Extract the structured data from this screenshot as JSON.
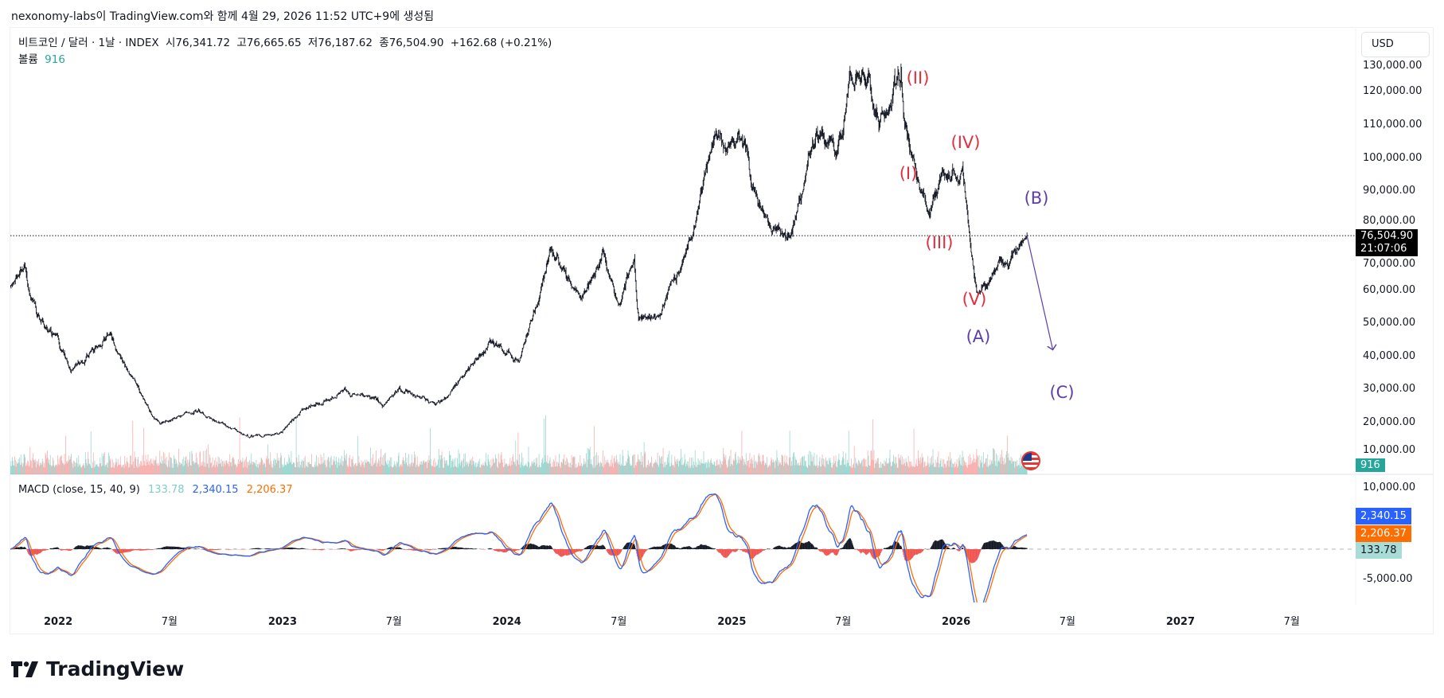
{
  "credit": "nexonomy-labs이 TradingView.com와 함께 4월 29, 2026 11:52 UTC+9에 생성됨",
  "legend": {
    "symbol": "비트코인 / 달러 · 1날 · INDEX",
    "open": "시76,341.72",
    "high": "고76,665.65",
    "low": "저76,187.62",
    "close": "종76,504.90",
    "change": "+162.68 (+0.21%)",
    "volume_label": "볼륨",
    "volume_value": "916"
  },
  "currency": "USD",
  "price_tag": {
    "price": "76,504.90",
    "countdown": "21:07:06"
  },
  "volume_tag": "916",
  "macd": {
    "title": "MACD (close, 15, 40, 9)",
    "histogram": "133.78",
    "macd": "2,340.15",
    "signal": "2,206.37",
    "colors": {
      "histogram": "#a8dcd6",
      "macd": "#2962ff",
      "signal": "#ff6d00"
    }
  },
  "waves": {
    "I": "(I)",
    "II": "(II)",
    "III": "(III)",
    "IV": "(IV)",
    "V": "(V)",
    "A": "(A)",
    "B": "(B)",
    "C": "(C)",
    "colors": {
      "impulse": "#e0303f",
      "corrective": "#5e3fa8"
    }
  },
  "logo": "TradingView",
  "chart_data": {
    "type": "line",
    "title": "비트코인 / 달러 · 1날 · INDEX",
    "price_ticks": [
      "130,000.00",
      "120,000.00",
      "110,000.00",
      "100,000.00",
      "90,000.00",
      "80,000.00",
      "70,000.00",
      "60,000.00",
      "50,000.00",
      "40,000.00",
      "30,000.00",
      "20,000.00",
      "10,000.00"
    ],
    "price_tick_values": [
      130000,
      120000,
      110000,
      100000,
      90000,
      80000,
      70000,
      60000,
      50000,
      40000,
      30000,
      20000,
      10000
    ],
    "macd_ticks": [
      "10,000.00",
      "-5,000.00"
    ],
    "macd_tick_values": [
      10000,
      -5000
    ],
    "time_ticks": [
      {
        "date": "2022-01-01",
        "label": "2022",
        "bold": true
      },
      {
        "date": "2022-07-01",
        "label": "7월"
      },
      {
        "date": "2023-01-01",
        "label": "2023",
        "bold": true
      },
      {
        "date": "2023-07-01",
        "label": "7월"
      },
      {
        "date": "2024-01-01",
        "label": "2024",
        "bold": true
      },
      {
        "date": "2024-07-01",
        "label": "7월"
      },
      {
        "date": "2025-01-01",
        "label": "2025",
        "bold": true
      },
      {
        "date": "2025-07-01",
        "label": "7월"
      },
      {
        "date": "2026-01-01",
        "label": "2026",
        "bold": true
      },
      {
        "date": "2026-07-01",
        "label": "7월"
      },
      {
        "date": "2027-01-01",
        "label": "2027",
        "bold": true
      },
      {
        "date": "2027-07-01",
        "label": "7월"
      }
    ],
    "price_path": [
      [
        "2021-10-17",
        61000
      ],
      [
        "2021-11-10",
        67000
      ],
      [
        "2021-12-04",
        49000
      ],
      [
        "2022-01-01",
        47000
      ],
      [
        "2022-01-24",
        36000
      ],
      [
        "2022-03-28",
        47000
      ],
      [
        "2022-05-10",
        30000
      ],
      [
        "2022-06-18",
        19500
      ],
      [
        "2022-08-14",
        24400
      ],
      [
        "2022-09-30",
        19500
      ],
      [
        "2022-11-09",
        16000
      ],
      [
        "2022-12-31",
        16500
      ],
      [
        "2023-01-31",
        23000
      ],
      [
        "2023-04-14",
        30500
      ],
      [
        "2023-06-15",
        25000
      ],
      [
        "2023-07-13",
        31000
      ],
      [
        "2023-09-11",
        25500
      ],
      [
        "2023-10-24",
        34500
      ],
      [
        "2023-12-08",
        44000
      ],
      [
        "2024-01-23",
        39500
      ],
      [
        "2024-03-14",
        72500
      ],
      [
        "2024-05-01",
        57500
      ],
      [
        "2024-06-07",
        71000
      ],
      [
        "2024-07-05",
        55000
      ],
      [
        "2024-07-29",
        68500
      ],
      [
        "2024-08-05",
        50000
      ],
      [
        "2024-09-06",
        53000
      ],
      [
        "2024-10-29",
        72500
      ],
      [
        "2024-11-22",
        99000
      ],
      [
        "2024-12-17",
        106000
      ],
      [
        "2025-01-20",
        106000
      ],
      [
        "2025-03-10",
        79000
      ],
      [
        "2025-04-08",
        76500
      ],
      [
        "2025-05-22",
        110000
      ],
      [
        "2025-06-22",
        99000
      ],
      [
        "2025-07-14",
        121000
      ],
      [
        "2025-08-14",
        123000
      ],
      [
        "2025-09-01",
        108000
      ],
      [
        "2025-10-06",
        125000
      ],
      [
        "2025-10-12",
        112000
      ],
      [
        "2025-11-21",
        82500
      ],
      [
        "2025-12-10",
        93000
      ],
      [
        "2026-01-14",
        96500
      ],
      [
        "2026-02-06",
        61000
      ],
      [
        "2026-03-01",
        66000
      ],
      [
        "2026-04-01",
        68500
      ],
      [
        "2026-04-29",
        76504.9
      ]
    ],
    "last_price": 76504.9,
    "projection": {
      "from": [
        "2026-04-29",
        76500
      ],
      "to": [
        "2026-06-10",
        42000
      ]
    }
  }
}
